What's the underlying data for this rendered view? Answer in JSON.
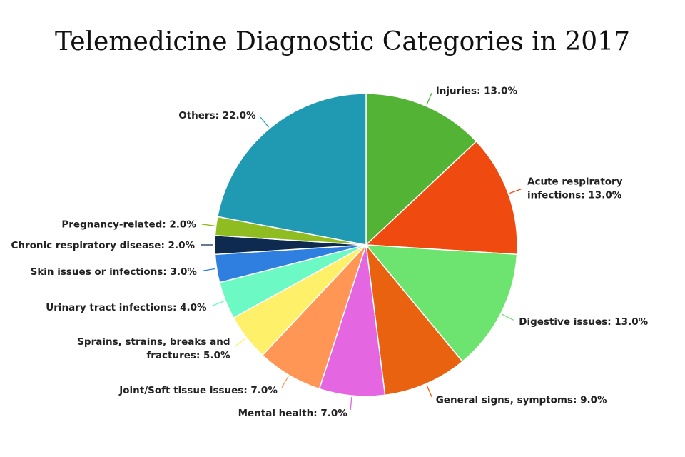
{
  "chart_data": {
    "type": "pie",
    "title": "Telemedicine Diagnostic Categories in 2017",
    "unit": "%",
    "slices": [
      {
        "label": "Injuries",
        "value": 13.0,
        "color": "#52b335",
        "label_lines": [
          "Injuries: 13.0%"
        ]
      },
      {
        "label": "Acute respiratory infections",
        "value": 13.0,
        "color": "#ef4b11",
        "label_lines": [
          "Acute respiratory",
          "infections: 13.0%"
        ]
      },
      {
        "label": "Digestive issues",
        "value": 13.0,
        "color": "#6ce46f",
        "label_lines": [
          "Digestive issues: 13.0%"
        ]
      },
      {
        "label": "General signs, symptoms",
        "value": 9.0,
        "color": "#e8620f",
        "label_lines": [
          "General signs, symptoms: 9.0%"
        ]
      },
      {
        "label": "Mental health",
        "value": 7.0,
        "color": "#e466e1",
        "label_lines": [
          "Mental health: 7.0%"
        ]
      },
      {
        "label": "Joint/Soft tissue issues",
        "value": 7.0,
        "color": "#ff9655",
        "label_lines": [
          "Joint/Soft tissue issues: 7.0%"
        ]
      },
      {
        "label": "Sprains, strains, breaks and fractures",
        "value": 5.0,
        "color": "#fff06a",
        "label_lines": [
          "Sprains, strains, breaks and",
          "fractures: 5.0%"
        ]
      },
      {
        "label": "Urinary tract infections",
        "value": 4.0,
        "color": "#6cf9c3",
        "label_lines": [
          "Urinary tract infections: 4.0%"
        ]
      },
      {
        "label": "Skin issues or infections",
        "value": 3.0,
        "color": "#2f7fe0",
        "label_lines": [
          "Skin issues or infections: 3.0%"
        ]
      },
      {
        "label": "Chronic respiratory disease",
        "value": 2.0,
        "color": "#0e2a4e",
        "label_lines": [
          "Chronic respiratory disease: 2.0%"
        ]
      },
      {
        "label": "Pregnancy-related",
        "value": 2.0,
        "color": "#8fbd21",
        "label_lines": [
          "Pregnancy-related: 2.0%"
        ]
      },
      {
        "label": "Others",
        "value": 22.0,
        "color": "#1f9ab2",
        "label_lines": [
          "Others: 22.0%"
        ]
      }
    ]
  }
}
